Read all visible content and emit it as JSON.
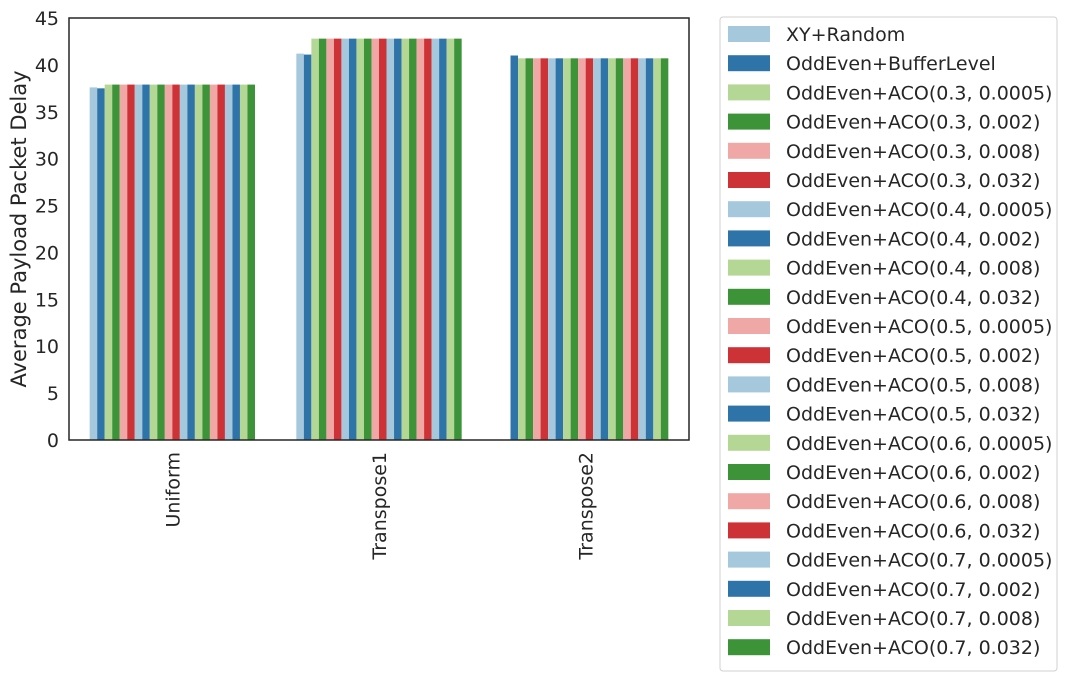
{
  "chart_data": {
    "type": "bar",
    "title": "",
    "xlabel": "",
    "ylabel": "Average Payload Packet Delay",
    "ylim": [
      0,
      45
    ],
    "yticks": [
      0,
      5,
      10,
      15,
      20,
      25,
      30,
      35,
      40,
      45
    ],
    "grid": false,
    "legend_position": "outside-right",
    "categories": [
      "Uniform",
      "Transpose1",
      "Transpose2"
    ],
    "series": [
      {
        "name": "XY+Random",
        "color": "#a6c8dc",
        "values": [
          37.6,
          41.2,
          0
        ]
      },
      {
        "name": "OddEven+BufferLevel",
        "color": "#2f74a8",
        "values": [
          37.5,
          41.1,
          41.0
        ]
      },
      {
        "name": "OddEven+ACO(0.3, 0.0005)",
        "color": "#b5d795",
        "values": [
          37.9,
          42.8,
          40.7
        ]
      },
      {
        "name": "OddEven+ACO(0.3, 0.002)",
        "color": "#3d9338",
        "values": [
          37.9,
          42.8,
          40.7
        ]
      },
      {
        "name": "OddEven+ACO(0.3, 0.008)",
        "color": "#f0a8a7",
        "values": [
          37.9,
          42.8,
          40.7
        ]
      },
      {
        "name": "OddEven+ACO(0.3, 0.032)",
        "color": "#cd3236",
        "values": [
          37.9,
          42.8,
          40.7
        ]
      },
      {
        "name": "OddEven+ACO(0.4, 0.0005)",
        "color": "#a6c8dc",
        "values": [
          37.9,
          42.8,
          40.7
        ]
      },
      {
        "name": "OddEven+ACO(0.4, 0.002)",
        "color": "#2f74a8",
        "values": [
          37.9,
          42.8,
          40.7
        ]
      },
      {
        "name": "OddEven+ACO(0.4, 0.008)",
        "color": "#b5d795",
        "values": [
          37.9,
          42.8,
          40.7
        ]
      },
      {
        "name": "OddEven+ACO(0.4, 0.032)",
        "color": "#3d9338",
        "values": [
          37.9,
          42.8,
          40.7
        ]
      },
      {
        "name": "OddEven+ACO(0.5, 0.0005)",
        "color": "#f0a8a7",
        "values": [
          37.9,
          42.8,
          40.7
        ]
      },
      {
        "name": "OddEven+ACO(0.5, 0.002)",
        "color": "#cd3236",
        "values": [
          37.9,
          42.8,
          40.7
        ]
      },
      {
        "name": "OddEven+ACO(0.5, 0.008)",
        "color": "#a6c8dc",
        "values": [
          37.9,
          42.8,
          40.7
        ]
      },
      {
        "name": "OddEven+ACO(0.5, 0.032)",
        "color": "#2f74a8",
        "values": [
          37.9,
          42.8,
          40.7
        ]
      },
      {
        "name": "OddEven+ACO(0.6, 0.0005)",
        "color": "#b5d795",
        "values": [
          37.9,
          42.8,
          40.7
        ]
      },
      {
        "name": "OddEven+ACO(0.6, 0.002)",
        "color": "#3d9338",
        "values": [
          37.9,
          42.8,
          40.7
        ]
      },
      {
        "name": "OddEven+ACO(0.6, 0.008)",
        "color": "#f0a8a7",
        "values": [
          37.9,
          42.8,
          40.7
        ]
      },
      {
        "name": "OddEven+ACO(0.6, 0.032)",
        "color": "#cd3236",
        "values": [
          37.9,
          42.8,
          40.7
        ]
      },
      {
        "name": "OddEven+ACO(0.7, 0.0005)",
        "color": "#a6c8dc",
        "values": [
          37.9,
          42.8,
          40.7
        ]
      },
      {
        "name": "OddEven+ACO(0.7, 0.002)",
        "color": "#2f74a8",
        "values": [
          37.9,
          42.8,
          40.7
        ]
      },
      {
        "name": "OddEven+ACO(0.7, 0.008)",
        "color": "#b5d795",
        "values": [
          37.9,
          42.8,
          40.7
        ]
      },
      {
        "name": "OddEven+ACO(0.7, 0.032)",
        "color": "#3d9338",
        "values": [
          37.9,
          42.8,
          40.7
        ]
      }
    ]
  }
}
